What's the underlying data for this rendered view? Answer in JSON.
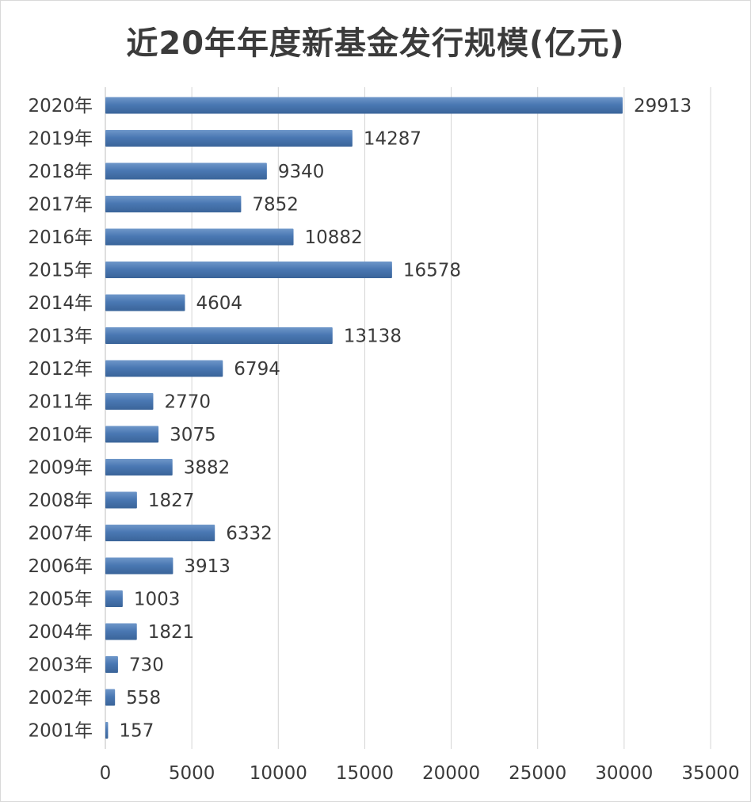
{
  "chart_data": {
    "type": "bar",
    "orientation": "horizontal",
    "title": "近20年年度新基金发行规模(亿元)",
    "categories": [
      "2020年",
      "2019年",
      "2018年",
      "2017年",
      "2016年",
      "2015年",
      "2014年",
      "2013年",
      "2012年",
      "2011年",
      "2010年",
      "2009年",
      "2008年",
      "2007年",
      "2006年",
      "2005年",
      "2004年",
      "2003年",
      "2002年",
      "2001年"
    ],
    "values": [
      29913,
      14287,
      9340,
      7852,
      10882,
      16578,
      4604,
      13138,
      6794,
      2770,
      3075,
      3882,
      1827,
      6332,
      3913,
      1003,
      1821,
      730,
      558,
      157
    ],
    "xlim": [
      0,
      35000
    ],
    "xticks": [
      0,
      5000,
      10000,
      15000,
      20000,
      25000,
      30000,
      35000
    ],
    "data_labels": true,
    "grid": "vertical",
    "legend": "none",
    "bar_color": "#4a78b3",
    "grid_color": "#d4d4d4",
    "text_color": "#3a3a3a"
  }
}
